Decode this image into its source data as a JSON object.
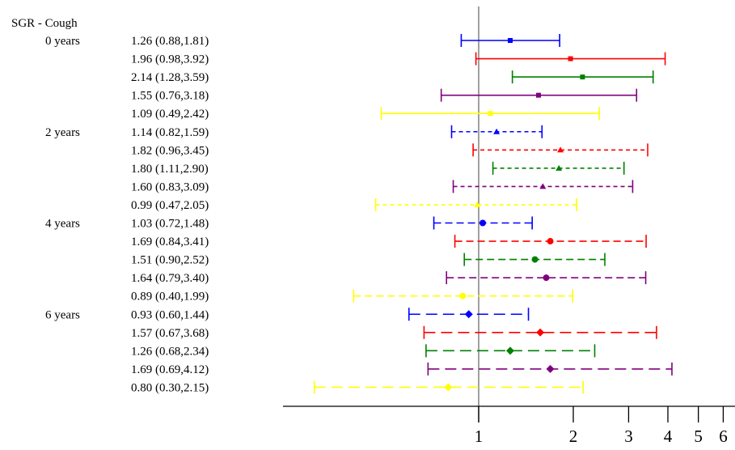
{
  "chart_data": {
    "type": "forest",
    "title": "SGR - Cough",
    "x_scale": "log",
    "reference_line": 1,
    "xlim": [
      0.3,
      6.4
    ],
    "x_ticks": [
      1,
      2,
      3,
      4,
      5,
      6
    ],
    "x_tick_labels": [
      "1",
      "2",
      "3",
      "4",
      "5",
      "6"
    ],
    "groups": [
      {
        "label": "0 years",
        "line_style": "solid",
        "marker": "square",
        "rows": [
          {
            "text": "1.26 (0.88,1.81)",
            "est": 1.26,
            "lo": 0.88,
            "hi": 1.81,
            "color": "#0000ff"
          },
          {
            "text": "1.96 (0.98,3.92)",
            "est": 1.96,
            "lo": 0.98,
            "hi": 3.92,
            "color": "#ff0000"
          },
          {
            "text": "2.14 (1.28,3.59)",
            "est": 2.14,
            "lo": 1.28,
            "hi": 3.59,
            "color": "#008000"
          },
          {
            "text": "1.55 (0.76,3.18)",
            "est": 1.55,
            "lo": 0.76,
            "hi": 3.18,
            "color": "#800080"
          },
          {
            "text": "1.09 (0.49,2.42)",
            "est": 1.09,
            "lo": 0.49,
            "hi": 2.42,
            "color": "#ffff00"
          }
        ]
      },
      {
        "label": "2 years",
        "line_style": "dash-short",
        "marker": "triangle",
        "rows": [
          {
            "text": "1.14 (0.82,1.59)",
            "est": 1.14,
            "lo": 0.82,
            "hi": 1.59,
            "color": "#0000ff"
          },
          {
            "text": "1.82 (0.96,3.45)",
            "est": 1.82,
            "lo": 0.96,
            "hi": 3.45,
            "color": "#ff0000"
          },
          {
            "text": "1.80 (1.11,2.90)",
            "est": 1.8,
            "lo": 1.11,
            "hi": 2.9,
            "color": "#008000"
          },
          {
            "text": "1.60 (0.83,3.09)",
            "est": 1.6,
            "lo": 0.83,
            "hi": 3.09,
            "color": "#800080"
          },
          {
            "text": "0.99 (0.47,2.05)",
            "est": 0.99,
            "lo": 0.47,
            "hi": 2.05,
            "color": "#ffff00"
          }
        ]
      },
      {
        "label": "4 years",
        "line_style": "dash-medium",
        "marker": "circle",
        "rows": [
          {
            "text": "1.03 (0.72,1.48)",
            "est": 1.03,
            "lo": 0.72,
            "hi": 1.48,
            "color": "#0000ff"
          },
          {
            "text": "1.69 (0.84,3.41)",
            "est": 1.69,
            "lo": 0.84,
            "hi": 3.41,
            "color": "#ff0000"
          },
          {
            "text": "1.51 (0.90,2.52)",
            "est": 1.51,
            "lo": 0.9,
            "hi": 2.52,
            "color": "#008000"
          },
          {
            "text": "1.64 (0.79,3.40)",
            "est": 1.64,
            "lo": 0.79,
            "hi": 3.4,
            "color": "#800080"
          },
          {
            "text": "0.89 (0.40,1.99)",
            "est": 0.89,
            "lo": 0.4,
            "hi": 1.99,
            "color": "#ffff00"
          }
        ]
      },
      {
        "label": "6 years",
        "line_style": "dash-long",
        "marker": "diamond",
        "rows": [
          {
            "text": "0.93 (0.60,1.44)",
            "est": 0.93,
            "lo": 0.6,
            "hi": 1.44,
            "color": "#0000ff"
          },
          {
            "text": "1.57 (0.67,3.68)",
            "est": 1.57,
            "lo": 0.67,
            "hi": 3.68,
            "color": "#ff0000"
          },
          {
            "text": "1.26 (0.68,2.34)",
            "est": 1.26,
            "lo": 0.68,
            "hi": 2.34,
            "color": "#008000"
          },
          {
            "text": "1.69 (0.69,4.12)",
            "est": 1.69,
            "lo": 0.69,
            "hi": 4.12,
            "color": "#800080"
          },
          {
            "text": "0.80 (0.30,2.15)",
            "est": 0.8,
            "lo": 0.3,
            "hi": 2.15,
            "color": "#ffff00"
          }
        ]
      }
    ]
  }
}
